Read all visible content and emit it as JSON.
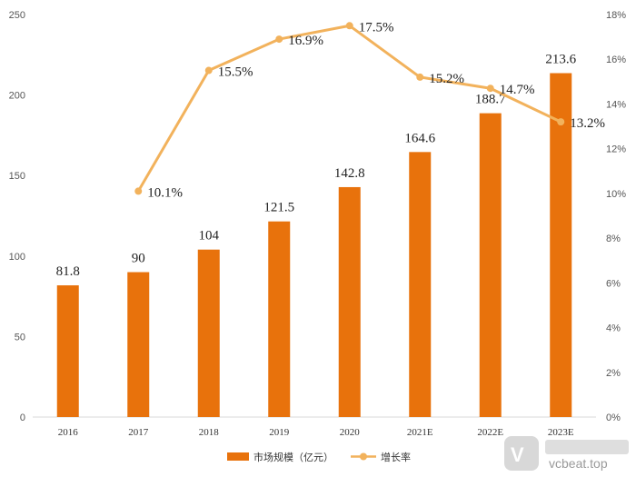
{
  "chart_data": {
    "type": "bar",
    "categories": [
      "2016",
      "2017",
      "2018",
      "2019",
      "2020",
      "2021E",
      "2022E",
      "2023E"
    ],
    "series": [
      {
        "name": "市场规模（亿元）",
        "type": "bar",
        "axis": "left",
        "color": "#E8720C",
        "values": [
          81.8,
          90,
          104,
          121.5,
          142.8,
          164.6,
          188.7,
          213.6
        ],
        "labels": [
          "81.8",
          "90",
          "104",
          "121.5",
          "142.8",
          "164.6",
          "188.7",
          "213.6"
        ]
      },
      {
        "name": "增长率",
        "type": "line",
        "axis": "right",
        "color": "#F2B25C",
        "values": [
          null,
          10.1,
          15.5,
          16.9,
          17.5,
          15.2,
          14.7,
          13.2
        ],
        "labels": [
          null,
          "10.1%",
          "15.5%",
          "16.9%",
          "17.5%",
          "15.2%",
          "14.7%",
          "13.2%"
        ]
      }
    ],
    "y_left": {
      "min": 0,
      "max": 250,
      "ticks": [
        "0",
        "50",
        "100",
        "150",
        "200",
        "250"
      ]
    },
    "y_right": {
      "min": 0,
      "max": 18,
      "ticks": [
        "0%",
        "2%",
        "4%",
        "6%",
        "8%",
        "10%",
        "12%",
        "14%",
        "16%",
        "18%"
      ]
    },
    "grid": false,
    "legend_position": "bottom-center"
  },
  "watermark": {
    "text": "vcbeat.top"
  }
}
